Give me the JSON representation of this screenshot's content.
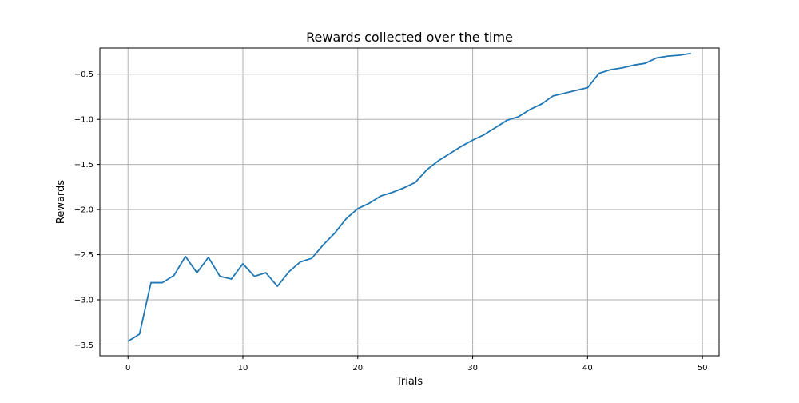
{
  "chart_data": {
    "type": "line",
    "title": "Rewards collected over the time",
    "xlabel": "Trials",
    "ylabel": "Rewards",
    "xlim": [
      -2.45,
      51.45
    ],
    "ylim": [
      -3.62,
      -0.21
    ],
    "xticks": [
      0,
      10,
      20,
      30,
      40,
      50
    ],
    "yticks": [
      -3.5,
      -3.0,
      -2.5,
      -2.0,
      -1.5,
      -1.0,
      -0.5
    ],
    "xtick_labels": [
      "0",
      "10",
      "20",
      "30",
      "40",
      "50"
    ],
    "ytick_labels": [
      "−3.5",
      "−3.0",
      "−2.5",
      "−2.0",
      "−1.5",
      "−1.0",
      "−0.5"
    ],
    "grid": true,
    "series": [
      {
        "color": "#1f77b4",
        "x": [
          0,
          1,
          2,
          3,
          4,
          5,
          6,
          7,
          8,
          9,
          10,
          11,
          12,
          13,
          14,
          15,
          16,
          17,
          18,
          19,
          20,
          21,
          22,
          23,
          24,
          25,
          26,
          27,
          28,
          29,
          30,
          31,
          32,
          33,
          34,
          35,
          36,
          37,
          38,
          39,
          40,
          41,
          42,
          43,
          44,
          45,
          46,
          47,
          48,
          49
        ],
        "y": [
          -3.46,
          -3.38,
          -2.81,
          -2.81,
          -2.73,
          -2.52,
          -2.7,
          -2.53,
          -2.74,
          -2.77,
          -2.6,
          -2.74,
          -2.7,
          -2.85,
          -2.69,
          -2.58,
          -2.54,
          -2.39,
          -2.26,
          -2.1,
          -1.99,
          -1.93,
          -1.85,
          -1.81,
          -1.76,
          -1.7,
          -1.56,
          -1.46,
          -1.38,
          -1.3,
          -1.23,
          -1.17,
          -1.09,
          -1.01,
          -0.97,
          -0.89,
          -0.83,
          -0.74,
          -0.71,
          -0.68,
          -0.65,
          -0.49,
          -0.45,
          -0.43,
          -0.4,
          -0.38,
          -0.32,
          -0.3,
          -0.29,
          -0.27
        ]
      }
    ]
  }
}
